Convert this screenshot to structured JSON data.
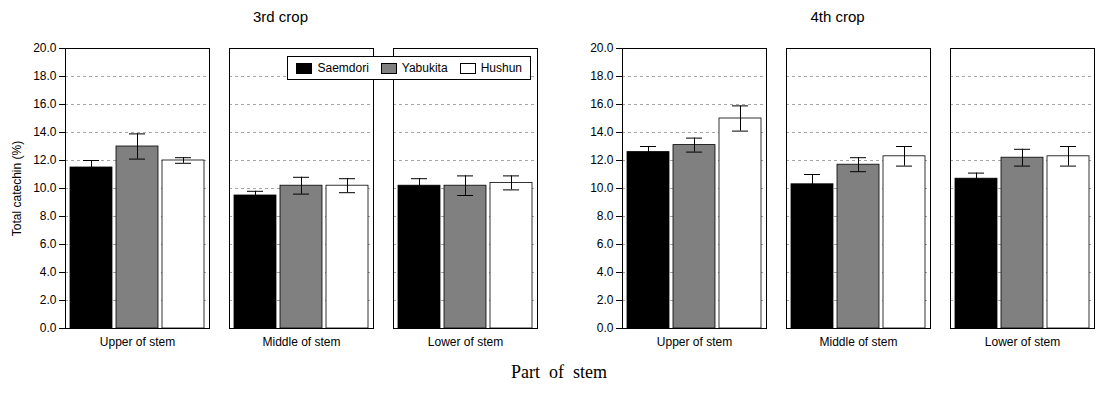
{
  "chart_data": [
    {
      "type": "bar",
      "title": "3rd crop",
      "categories": [
        "Upper of stem",
        "Middle of stem",
        "Lower of stem"
      ],
      "series": [
        {
          "name": "Saemdori",
          "color": "#000000",
          "values": [
            11.5,
            9.5,
            10.2
          ],
          "errors": [
            0.5,
            0.3,
            0.5
          ]
        },
        {
          "name": "Yabukita",
          "color": "#808080",
          "values": [
            13.0,
            10.2,
            10.2
          ],
          "errors": [
            0.9,
            0.6,
            0.7
          ]
        },
        {
          "name": "Hushun",
          "color": "#ffffff",
          "values": [
            12.0,
            10.2,
            10.4
          ],
          "errors": [
            0.2,
            0.5,
            0.5
          ]
        }
      ],
      "ylabel": "Total catechin (%)",
      "xlabel": "Part  of  stem",
      "ylim": [
        0.0,
        20.0
      ],
      "yticks": [
        {
          "value": 0.0,
          "label": "0.0"
        },
        {
          "value": 2.0,
          "label": "2.0"
        },
        {
          "value": 4.0,
          "label": "4.0"
        },
        {
          "value": 6.0,
          "label": "6.0"
        },
        {
          "value": 8.0,
          "label": "8.0"
        },
        {
          "value": 10.0,
          "label": "10.0"
        },
        {
          "value": 12.0,
          "label": "12.0"
        },
        {
          "value": 14.0,
          "label": "14.0"
        },
        {
          "value": 16.0,
          "label": "16.0"
        },
        {
          "value": 18.0,
          "label": "18.0"
        },
        {
          "value": 20.0,
          "label": "20.0"
        }
      ],
      "grid": true,
      "legend": "upper right"
    },
    {
      "type": "bar",
      "title": "4th crop",
      "categories": [
        "Upper of stem",
        "Middle of stem",
        "Lower of stem"
      ],
      "series": [
        {
          "name": "Saemdori",
          "color": "#000000",
          "values": [
            12.6,
            10.3,
            10.7
          ],
          "errors": [
            0.4,
            0.7,
            0.4
          ]
        },
        {
          "name": "Yabukita",
          "color": "#808080",
          "values": [
            13.1,
            11.7,
            12.2
          ],
          "errors": [
            0.5,
            0.5,
            0.6
          ]
        },
        {
          "name": "Hushun",
          "color": "#ffffff",
          "values": [
            15.0,
            12.3,
            12.3
          ],
          "errors": [
            0.9,
            0.7,
            0.7
          ]
        }
      ],
      "ylim": [
        0.0,
        20.0
      ],
      "yticks": [
        {
          "value": 0.0,
          "label": "0.0"
        },
        {
          "value": 2.0,
          "label": "2.0"
        },
        {
          "value": 4.0,
          "label": "4.0"
        },
        {
          "value": 6.0,
          "label": "6.0"
        },
        {
          "value": 8.0,
          "label": "8.0"
        },
        {
          "value": 10.0,
          "label": "10.0"
        },
        {
          "value": 12.0,
          "label": "12.0"
        },
        {
          "value": 14.0,
          "label": "14.0"
        },
        {
          "value": 16.0,
          "label": "16.0"
        },
        {
          "value": 18.0,
          "label": "18.0"
        },
        {
          "value": 20.0,
          "label": "20.0"
        }
      ],
      "grid": true
    }
  ]
}
